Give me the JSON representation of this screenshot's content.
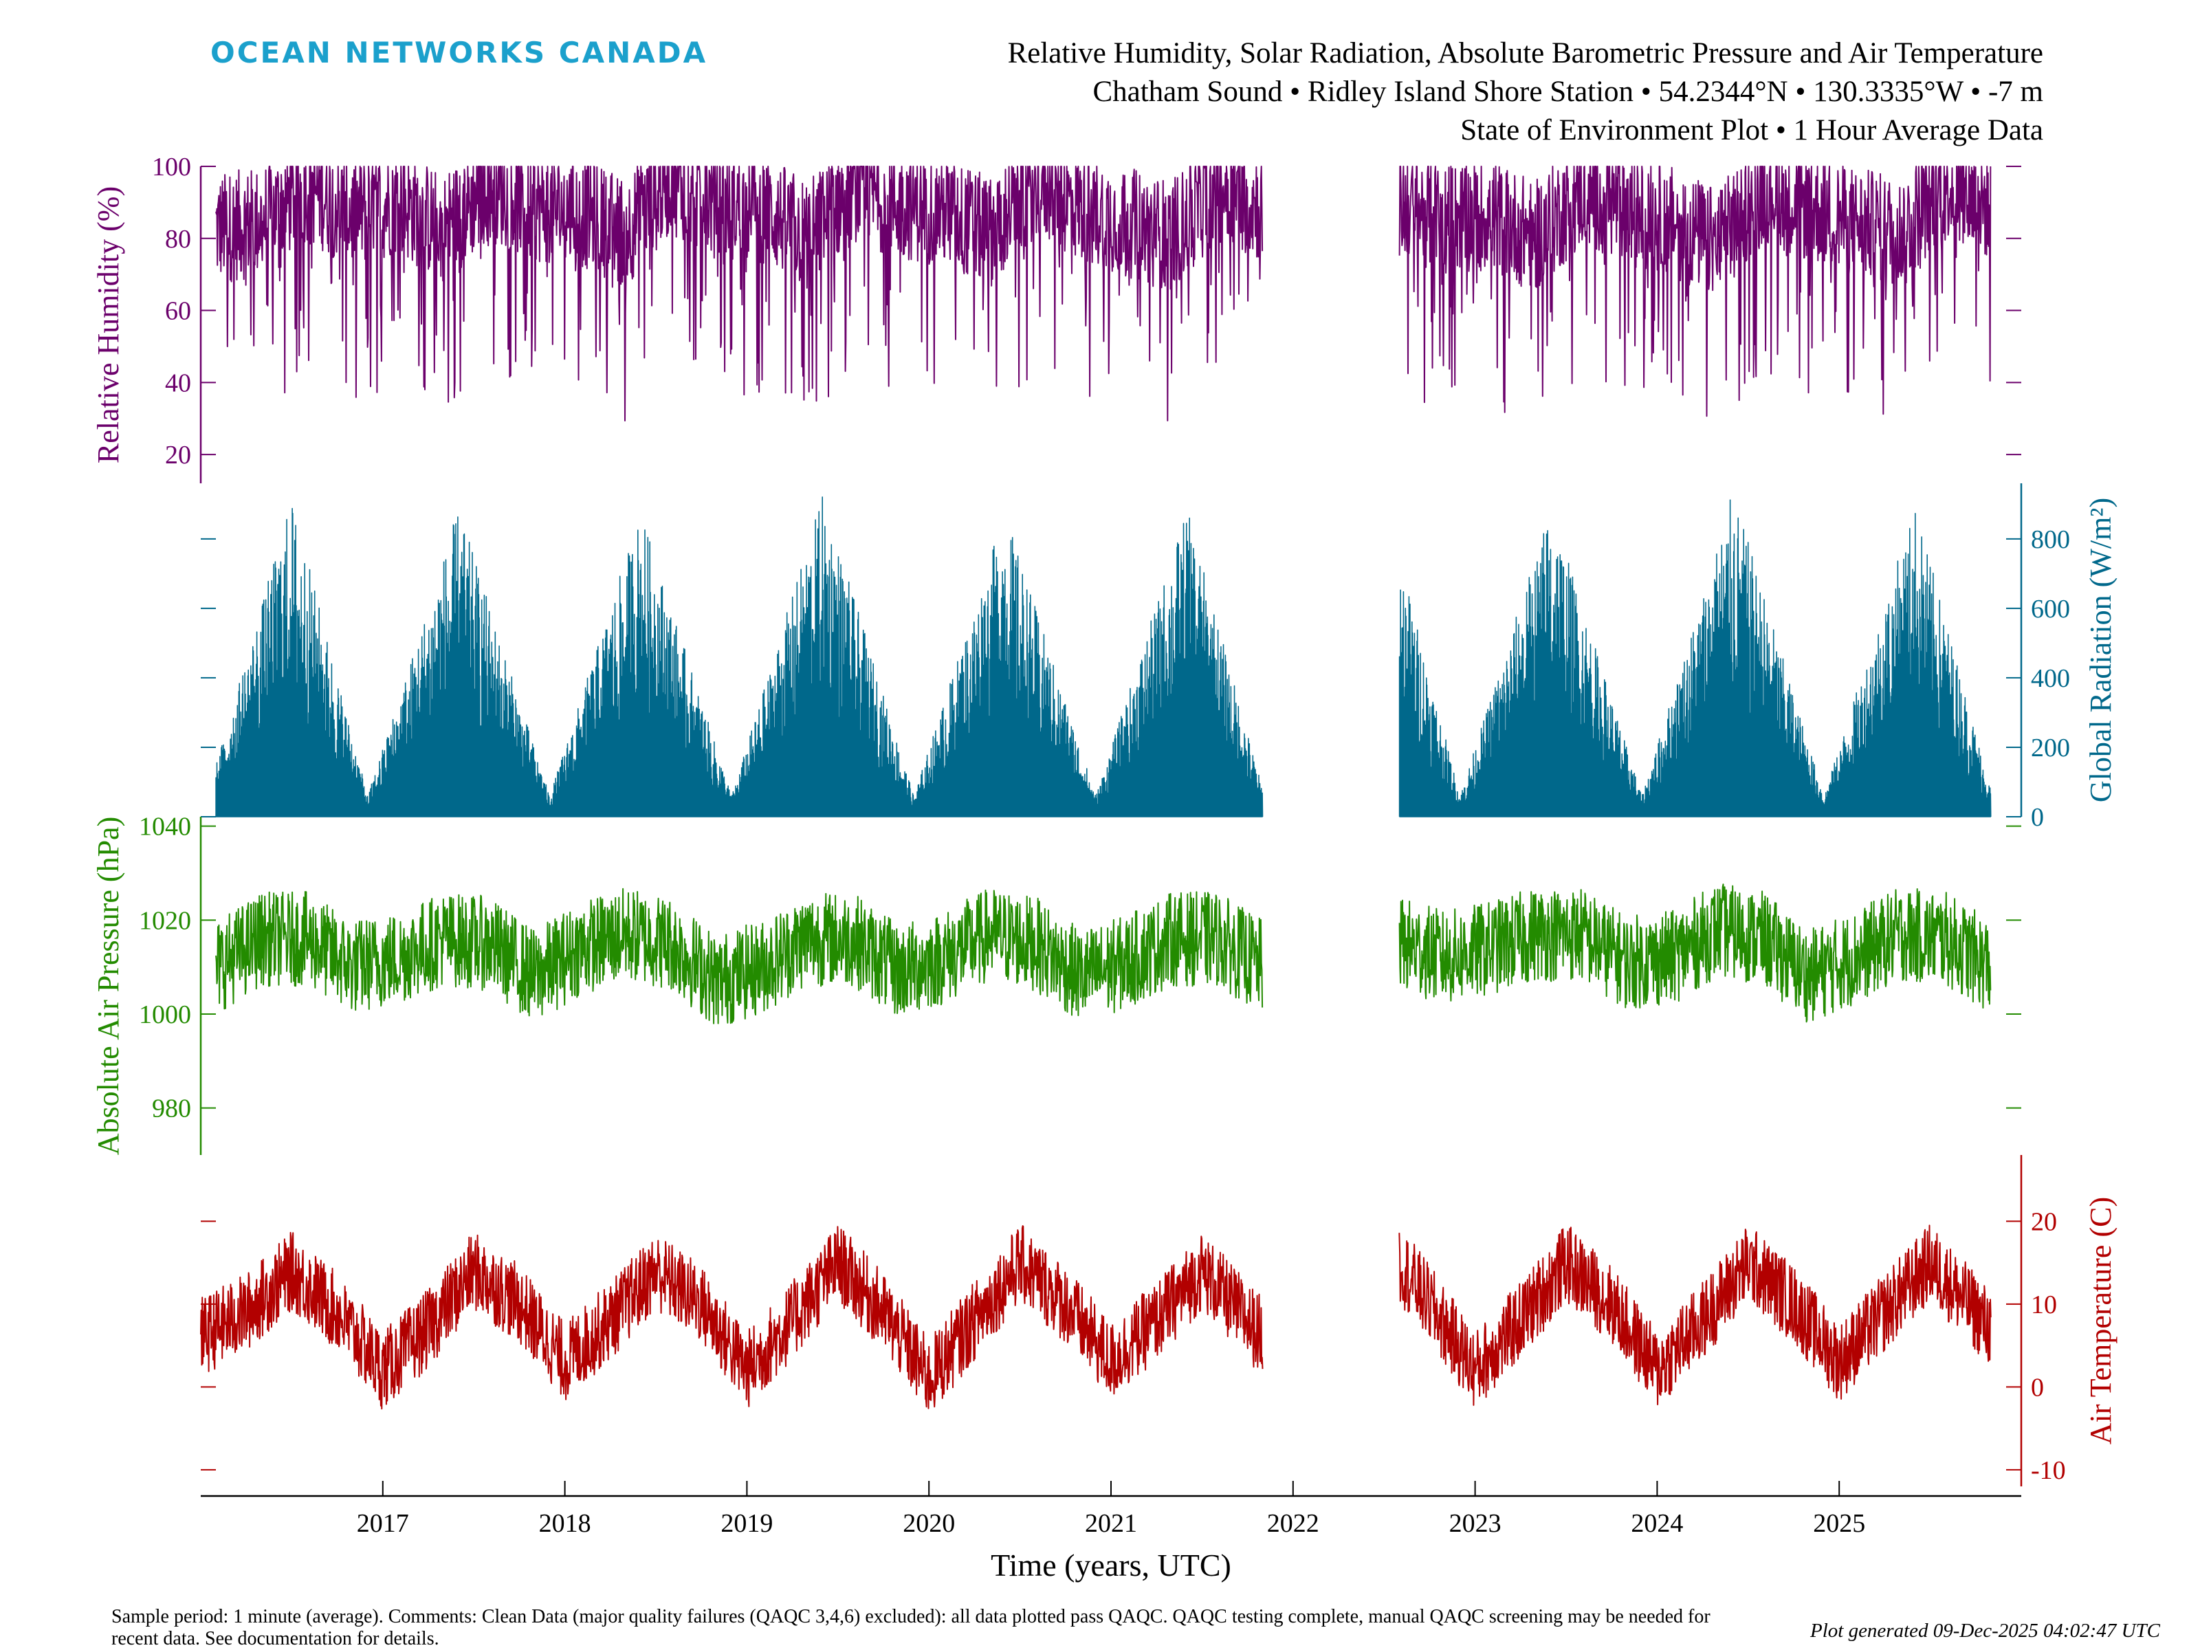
{
  "header": {
    "logo_text": "OCEAN NETWORKS CANADA",
    "title_line1": "Relative Humidity, Solar Radiation, Absolute Barometric Pressure and Air Temperature",
    "title_line2": "Chatham Sound • Ridley Island Shore Station • 54.2344°N • 130.3335°W • -7 m",
    "title_line3": "State of Environment Plot • 1 Hour Average Data"
  },
  "footer": {
    "comment": "Sample period: 1 minute (average). Comments: Clean Data (major quality failures (QAQC 3,4,6) excluded): all data plotted pass QAQC. QAQC testing complete, manual QAQC screening may be needed for recent data. See documentation for details.",
    "generated": "Plot generated 09-Dec-2025 04:02:47 UTC"
  },
  "chart_data": {
    "type": "line",
    "xlabel": "Time (years, UTC)",
    "x_tick_labels": [
      "2017",
      "2018",
      "2019",
      "2020",
      "2021",
      "2022",
      "2023",
      "2024",
      "2025"
    ],
    "x_range": [
      "2016-01",
      "2025-12"
    ],
    "data_gap": [
      "2021-11",
      "2022-08"
    ],
    "grid": false,
    "panels": [
      {
        "name": "humidity",
        "ylabel": "Relative Humidity (%)",
        "axis_side": "left",
        "color": "#6b006b",
        "ylim": [
          12,
          100
        ],
        "yticks": [
          20,
          40,
          60,
          80,
          100
        ],
        "series": [
          {
            "x": [
              "2016-02",
              "2016-05",
              "2016-08",
              "2016-11",
              "2017-02",
              "2017-05",
              "2017-08",
              "2017-11",
              "2018-02",
              "2018-05",
              "2018-08",
              "2018-11",
              "2019-02",
              "2019-05",
              "2019-08",
              "2019-11",
              "2020-02",
              "2020-05",
              "2020-08",
              "2020-11",
              "2021-02",
              "2021-05",
              "2021-08",
              "2021-11",
              "2022-08",
              "2022-11",
              "2023-02",
              "2023-05",
              "2023-08",
              "2023-11",
              "2024-02",
              "2024-05",
              "2024-08",
              "2024-11",
              "2025-02",
              "2025-05",
              "2025-08",
              "2025-11"
            ],
            "values": [
              78,
              80,
              90,
              82,
              86,
              78,
              90,
              84,
              83,
              77,
              92,
              85,
              84,
              76,
              90,
              85,
              83,
              77,
              91,
              84,
              80,
              76,
              90,
              84,
              85,
              81,
              82,
              76,
              88,
              84,
              80,
              74,
              90,
              84,
              80,
              77,
              91,
              84
            ]
          }
        ]
      },
      {
        "name": "radiation",
        "ylabel": "Global Radiation (W/m²)",
        "axis_side": "right",
        "color": "#00688b",
        "ylim": [
          0,
          960
        ],
        "yticks": [
          0,
          200,
          400,
          600,
          800
        ],
        "series": [
          {
            "x": [
              "2016-02",
              "2016-07",
              "2016-12",
              "2017-06",
              "2017-12",
              "2018-06",
              "2018-12",
              "2019-06",
              "2019-12",
              "2020-06",
              "2020-12",
              "2021-06",
              "2021-11",
              "2022-08",
              "2022-12",
              "2023-06",
              "2023-12",
              "2024-06",
              "2024-12",
              "2025-06",
              "2025-11"
            ],
            "values": [
              150,
              920,
              60,
              890,
              60,
              880,
              60,
              930,
              60,
              880,
              60,
              890,
              80,
              760,
              60,
              900,
              60,
              940,
              60,
              900,
              80
            ]
          }
        ]
      },
      {
        "name": "pressure",
        "ylabel": "Absolute Air Pressure (hPa)",
        "axis_side": "left",
        "color": "#238b00",
        "ylim": [
          970,
          1042
        ],
        "yticks": [
          980,
          1000,
          1020,
          1040
        ],
        "series": [
          {
            "x": [
              "2016-02",
              "2016-05",
              "2016-08",
              "2016-11",
              "2017-02",
              "2017-05",
              "2017-08",
              "2017-11",
              "2018-02",
              "2018-05",
              "2018-08",
              "2018-11",
              "2019-02",
              "2019-05",
              "2019-08",
              "2019-11",
              "2020-02",
              "2020-05",
              "2020-08",
              "2020-11",
              "2021-02",
              "2021-05",
              "2021-08",
              "2021-11",
              "2022-08",
              "2022-11",
              "2023-02",
              "2023-05",
              "2023-08",
              "2023-11",
              "2024-02",
              "2024-05",
              "2024-08",
              "2024-11",
              "2025-02",
              "2025-05",
              "2025-08",
              "2025-11"
            ],
            "values": [
              1010,
              1016,
              1016,
              1010,
              1012,
              1016,
              1015,
              1008,
              1014,
              1017,
              1015,
              1007,
              1010,
              1016,
              1016,
              1009,
              1012,
              1017,
              1015,
              1008,
              1011,
              1016,
              1016,
              1010,
              1015,
              1012,
              1014,
              1017,
              1017,
              1011,
              1012,
              1018,
              1016,
              1008,
              1012,
              1017,
              1016,
              1010
            ]
          }
        ]
      },
      {
        "name": "temperature",
        "ylabel": "Air Temperature (C)",
        "axis_side": "right",
        "color": "#b20000",
        "ylim": [
          -12,
          28
        ],
        "yticks": [
          -10,
          0,
          10,
          20
        ],
        "series": [
          {
            "x": [
              "2016-01",
              "2016-04",
              "2016-07",
              "2016-10",
              "2017-01",
              "2017-04",
              "2017-07",
              "2017-10",
              "2018-01",
              "2018-04",
              "2018-07",
              "2018-10",
              "2019-01",
              "2019-04",
              "2019-07",
              "2019-10",
              "2020-01",
              "2020-04",
              "2020-07",
              "2020-10",
              "2021-01",
              "2021-04",
              "2021-07",
              "2021-10",
              "2021-11",
              "2022-08",
              "2022-10",
              "2023-01",
              "2023-04",
              "2023-07",
              "2023-10",
              "2024-01",
              "2024-04",
              "2024-07",
              "2024-10",
              "2025-01",
              "2025-04",
              "2025-07",
              "2025-10",
              "2025-11"
            ],
            "values": [
              6,
              9,
              14,
              9,
              2,
              7,
              14,
              10,
              3,
              8,
              14,
              10,
              2,
              8,
              15,
              9,
              1,
              8,
              15,
              10,
              3,
              8,
              14,
              8,
              6,
              15,
              10,
              2,
              8,
              15,
              10,
              2,
              8,
              15,
              10,
              3,
              9,
              15,
              9,
              7
            ]
          }
        ]
      }
    ]
  }
}
